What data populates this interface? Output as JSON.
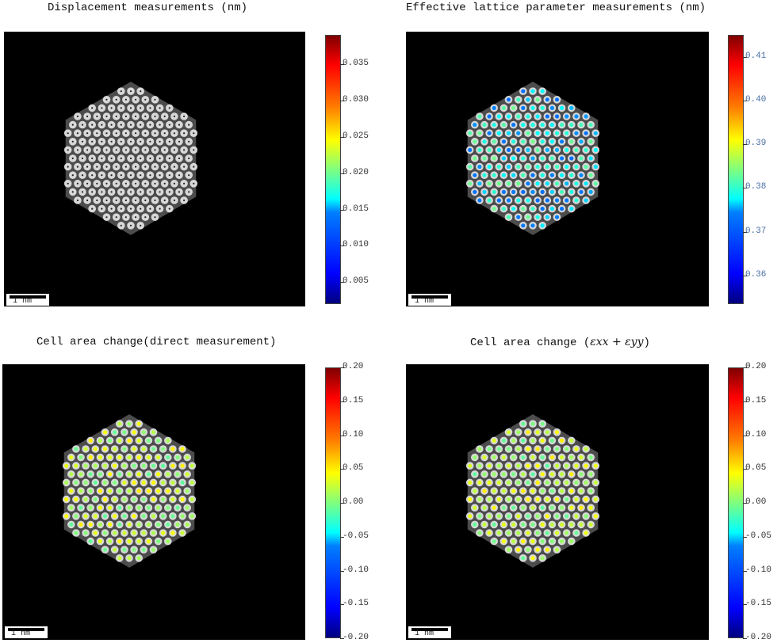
{
  "panels": [
    {
      "id": "displacement",
      "title": "Displacement measurements (nm)",
      "scale_label": "1 nm",
      "colorbar": {
        "range": [
          0.002,
          0.039
        ],
        "ticks": [
          0.005,
          0.01,
          0.015,
          0.02,
          0.025,
          0.03,
          0.035
        ],
        "tick_labels": [
          "0.005",
          "0.010",
          "0.015",
          "0.020",
          "0.025",
          "0.030",
          "0.035"
        ],
        "tick_color": "#333333"
      }
    },
    {
      "id": "lattice",
      "title": "Effective lattice parameter measurements (nm)",
      "scale_label": "1 nm",
      "colorbar": {
        "range": [
          0.3535,
          0.415
        ],
        "ticks": [
          0.36,
          0.37,
          0.38,
          0.39,
          0.4,
          0.41
        ],
        "tick_labels": [
          "0.36",
          "0.37",
          "0.38",
          "0.39",
          "0.40",
          "0.41"
        ],
        "tick_color": "#4a6fa5"
      }
    },
    {
      "id": "area-direct",
      "title": "Cell area change(direct measurement)",
      "scale_label": "1 nm",
      "colorbar": {
        "range": [
          -0.2,
          0.2
        ],
        "ticks": [
          -0.2,
          -0.15,
          -0.1,
          -0.05,
          0.0,
          0.05,
          0.1,
          0.15,
          0.2
        ],
        "tick_labels": [
          "-0.20",
          "-0.15",
          "-0.10",
          "-0.05",
          "0.00",
          "0.05",
          "0.10",
          "0.15",
          "0.20"
        ],
        "tick_color": "#333333"
      }
    },
    {
      "id": "area-strain",
      "title_prefix": "Cell area change (",
      "title_math": "εxx + εyy",
      "title_suffix": ")",
      "scale_label": "1 nm",
      "colorbar": {
        "range": [
          -0.2,
          0.2
        ],
        "ticks": [
          -0.2,
          -0.15,
          -0.1,
          -0.05,
          0.0,
          0.05,
          0.1,
          0.15,
          0.2
        ],
        "tick_labels": [
          "-0.20",
          "-0.15",
          "-0.10",
          "-0.05",
          "0.00",
          "0.05",
          "0.10",
          "0.15",
          "0.20"
        ],
        "tick_color": "#333333"
      }
    }
  ],
  "colormap": "jet"
}
